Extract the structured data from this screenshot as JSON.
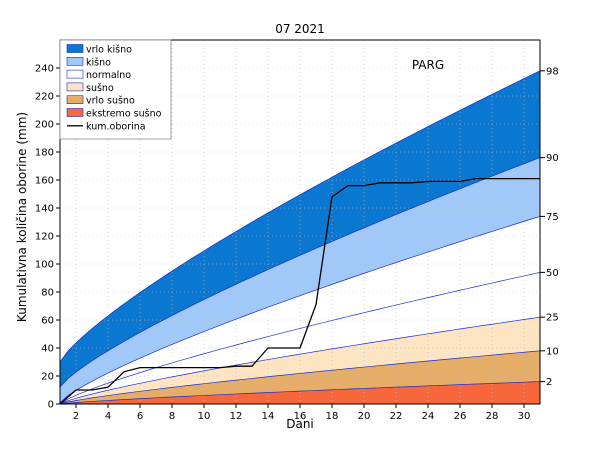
{
  "chart_data": {
    "type": "area",
    "title": "07 2021",
    "station": "PARG",
    "xlabel": "Dani",
    "ylabel": "Kumulativna količina oborine (mm)",
    "xlim": [
      1,
      31
    ],
    "ylim": [
      0,
      260
    ],
    "x_ticks": [
      2,
      4,
      6,
      8,
      10,
      12,
      14,
      16,
      18,
      20,
      22,
      24,
      26,
      28,
      30
    ],
    "y_ticks": [
      0,
      20,
      40,
      60,
      80,
      100,
      120,
      140,
      160,
      180,
      200,
      220,
      240
    ],
    "grid": true,
    "legend_position": "top-left",
    "percentile_lines": [
      {
        "label": "98",
        "start": 30,
        "end": 238
      },
      {
        "label": "90",
        "start": 12,
        "end": 176
      },
      {
        "label": "75",
        "start": 1,
        "end": 134
      },
      {
        "label": "50",
        "start": 0,
        "end": 94
      },
      {
        "label": "25",
        "start": 0,
        "end": 62
      },
      {
        "label": "10",
        "start": 0,
        "end": 38
      },
      {
        "label": "2",
        "start": 0,
        "end": 16
      }
    ],
    "bands": [
      {
        "name": "vrlo kišno",
        "color": "#0a78d0",
        "from": "90",
        "to": "98"
      },
      {
        "name": "kišno",
        "color": "#a0c8f8",
        "from": "75",
        "to": "90"
      },
      {
        "name": "normalno",
        "color": "#ffffff",
        "from": "25",
        "to": "75"
      },
      {
        "name": "sušno",
        "color": "#fde4c2",
        "from": "10",
        "to": "25"
      },
      {
        "name": "vrlo sušno",
        "color": "#e5ad68",
        "from": "2",
        "to": "10"
      },
      {
        "name": "ekstremo sušno",
        "color": "#f8663c",
        "from": "0",
        "to": "2"
      }
    ],
    "series": [
      {
        "name": "kum.oborina",
        "color": "#000000",
        "x": [
          1,
          2,
          3,
          4,
          5,
          6,
          7,
          8,
          9,
          10,
          11,
          12,
          13,
          14,
          15,
          16,
          17,
          18,
          19,
          20,
          21,
          22,
          23,
          24,
          25,
          26,
          27,
          28,
          29,
          30,
          31
        ],
        "values": [
          0,
          10,
          10,
          12,
          23,
          26,
          26,
          26,
          26,
          26,
          26,
          27,
          27,
          40,
          40,
          40,
          71,
          148,
          156,
          156,
          158,
          158,
          158,
          159,
          159,
          159,
          161,
          161,
          161,
          161,
          161
        ]
      }
    ]
  }
}
